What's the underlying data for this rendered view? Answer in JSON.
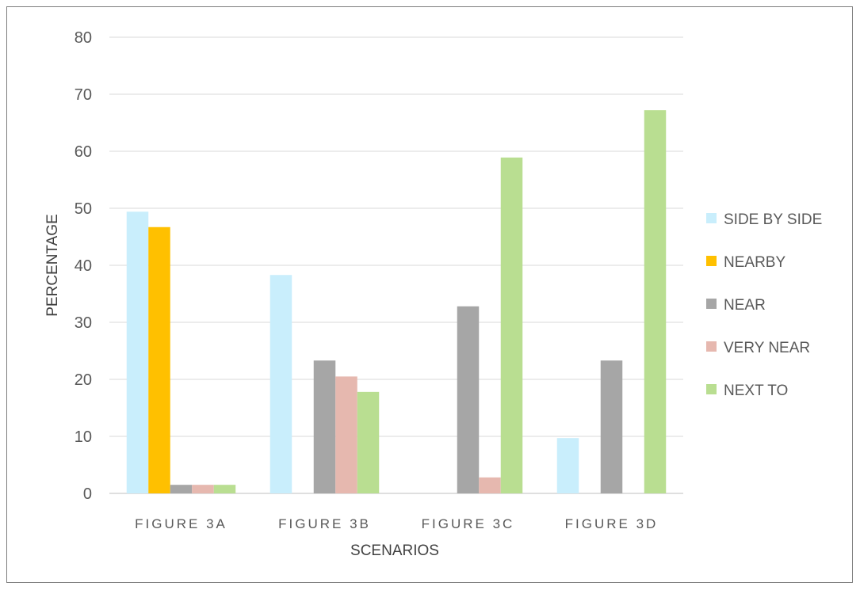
{
  "chart_data": {
    "type": "bar",
    "title": "",
    "xlabel": "SCENARIOS",
    "ylabel": "PERCENTAGE",
    "ylim": [
      0,
      80
    ],
    "yticks": [
      "0",
      "10",
      "20",
      "30",
      "40",
      "50",
      "60",
      "70",
      "80"
    ],
    "grid": true,
    "legend_position": "right",
    "categories": [
      "FIGURE 3A",
      "FIGURE 3B",
      "FIGURE 3C",
      "FIGURE 3D"
    ],
    "series": [
      {
        "name": "SIDE BY SIDE",
        "color": "#c9eefc",
        "values": [
          49.4,
          38.3,
          0,
          9.7
        ]
      },
      {
        "name": "NEARBY",
        "color": "#ffc000",
        "values": [
          46.7,
          0,
          0,
          0
        ]
      },
      {
        "name": "NEAR",
        "color": "#a6a6a6",
        "values": [
          1.5,
          23.3,
          32.8,
          23.3
        ]
      },
      {
        "name": "VERY NEAR",
        "color": "#e6b8af",
        "values": [
          1.5,
          20.5,
          2.8,
          0
        ]
      },
      {
        "name": "NEXT TO",
        "color": "#b9de91",
        "values": [
          1.5,
          17.8,
          58.9,
          67.2
        ]
      }
    ]
  }
}
